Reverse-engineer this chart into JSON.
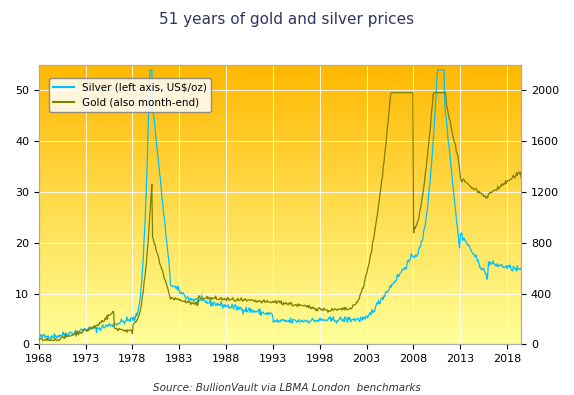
{
  "title": "51 years of gold and silver prices",
  "source_text": "Source: BullionVault via LBMA London  benchmarks",
  "silver_color": "#00BFFF",
  "gold_color": "#808000",
  "bg_top_color": "#FFB800",
  "bg_bottom_color": "#FFFF99",
  "left_ylim": [
    0,
    55
  ],
  "right_ylim": [
    0,
    2200
  ],
  "left_yticks": [
    0,
    10,
    20,
    30,
    40,
    50
  ],
  "right_yticks": [
    0,
    400,
    800,
    1200,
    1600,
    2000
  ],
  "xticks": [
    1968,
    1973,
    1978,
    1983,
    1988,
    1993,
    1998,
    2003,
    2008,
    2013,
    2018
  ],
  "legend_labels": [
    "Silver (left axis, US$/oz)",
    "Gold (also month-end)"
  ],
  "legend_colors": [
    "#00BFFF",
    "#808000"
  ]
}
